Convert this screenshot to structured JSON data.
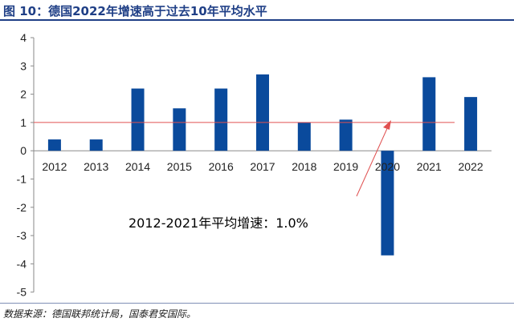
{
  "figure": {
    "title": "图 10：德国2022年增速高于过去10年平均水平",
    "source": "数据来源：德国联邦统计局，国泰君安国际。"
  },
  "chart_data": {
    "type": "bar",
    "categories": [
      "2012",
      "2013",
      "2014",
      "2015",
      "2016",
      "2017",
      "2018",
      "2019",
      "2020",
      "2021",
      "2022"
    ],
    "values": [
      0.4,
      0.4,
      2.2,
      1.5,
      2.2,
      2.7,
      1.0,
      1.1,
      -3.7,
      2.6,
      1.9
    ],
    "ylim": [
      -5,
      4
    ],
    "yticks": [
      4,
      3,
      2,
      1,
      0,
      -1,
      -2,
      -3,
      -4,
      -5
    ],
    "ytick_labels": [
      "4",
      "3",
      "2",
      "1",
      "0",
      "-1",
      "-2",
      "-3",
      "-4",
      "-5"
    ],
    "reference_line": {
      "value": 1.0,
      "color": "#e05050"
    },
    "annotation": "2012-2021年平均增速：1.0%",
    "bar_color": "#0a4a9c",
    "grid": false
  }
}
